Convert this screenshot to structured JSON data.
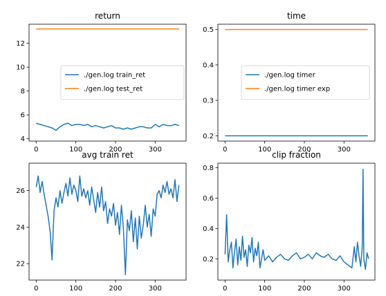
{
  "colors": {
    "blue": "#1f77b4",
    "orange": "#ff7f0e"
  },
  "chart_data": [
    {
      "type": "line",
      "title": "return",
      "xlim": [
        -18,
        378
      ],
      "ylim": [
        3.8,
        13.6
      ],
      "xticks": [
        0,
        100,
        200,
        300
      ],
      "yticks": [
        4,
        6,
        8,
        10,
        12
      ],
      "grid": false,
      "legend": "center-right",
      "series": [
        {
          "name": "./gen.log train_ret",
          "color": "#1f77b4",
          "x": [
            0,
            10,
            20,
            30,
            40,
            50,
            60,
            70,
            80,
            90,
            100,
            110,
            120,
            130,
            140,
            150,
            160,
            170,
            180,
            190,
            200,
            210,
            220,
            230,
            240,
            250,
            260,
            270,
            280,
            290,
            300,
            310,
            320,
            330,
            340,
            350,
            360
          ],
          "y": [
            5.3,
            5.2,
            5.1,
            5.0,
            4.9,
            4.7,
            5.0,
            5.2,
            5.3,
            5.1,
            5.2,
            5.2,
            5.1,
            5.2,
            5.0,
            5.1,
            5.0,
            4.9,
            5.0,
            5.1,
            4.9,
            4.9,
            4.8,
            4.9,
            4.8,
            4.9,
            5.0,
            5.0,
            4.9,
            4.9,
            5.2,
            5.0,
            5.2,
            5.1,
            5.1,
            5.2,
            5.1
          ]
        },
        {
          "name": "./gen.log test_ret",
          "color": "#ff7f0e",
          "x": [
            0,
            360
          ],
          "y": [
            13.2,
            13.2
          ]
        }
      ]
    },
    {
      "type": "line",
      "title": "time",
      "xlim": [
        -18,
        378
      ],
      "ylim": [
        0.185,
        0.515
      ],
      "xticks": [
        0,
        100,
        200,
        300
      ],
      "yticks": [
        0.2,
        0.3,
        0.4,
        0.5
      ],
      "grid": false,
      "legend": "center-right",
      "series": [
        {
          "name": "./gen.log timer",
          "color": "#1f77b4",
          "x": [
            0,
            360
          ],
          "y": [
            0.2,
            0.2
          ]
        },
        {
          "name": "./gen.log timer exp",
          "color": "#ff7f0e",
          "x": [
            0,
            360
          ],
          "y": [
            0.5,
            0.5
          ]
        }
      ]
    },
    {
      "type": "line",
      "title": "avg train ret",
      "xlim": [
        -18,
        378
      ],
      "ylim": [
        21.1,
        27.5
      ],
      "xticks": [
        0,
        100,
        200,
        300
      ],
      "yticks": [
        22,
        24,
        26
      ],
      "grid": false,
      "series": [
        {
          "color": "#1f77b4",
          "x": [
            0,
            5,
            10,
            15,
            20,
            25,
            30,
            35,
            40,
            45,
            50,
            55,
            60,
            65,
            70,
            75,
            80,
            85,
            90,
            95,
            100,
            105,
            110,
            115,
            120,
            125,
            130,
            135,
            140,
            145,
            150,
            155,
            160,
            165,
            170,
            175,
            180,
            185,
            190,
            195,
            200,
            205,
            210,
            215,
            220,
            225,
            230,
            235,
            240,
            245,
            250,
            255,
            260,
            265,
            270,
            275,
            280,
            285,
            290,
            295,
            300,
            305,
            310,
            315,
            320,
            325,
            330,
            335,
            340,
            345,
            350,
            355,
            360
          ],
          "y": [
            26.2,
            26.8,
            25.9,
            26.5,
            25.8,
            25.2,
            24.6,
            23.8,
            22.2,
            24.9,
            25.6,
            25.1,
            26.0,
            25.3,
            25.9,
            26.4,
            25.7,
            26.7,
            25.8,
            26.3,
            26.0,
            25.4,
            26.8,
            25.7,
            26.1,
            25.6,
            26.0,
            25.2,
            26.2,
            25.5,
            24.8,
            25.9,
            25.1,
            26.2,
            24.9,
            25.4,
            24.2,
            25.0,
            24.6,
            25.3,
            24.1,
            24.8,
            23.6,
            25.2,
            23.9,
            21.4,
            24.4,
            23.8,
            24.9,
            23.2,
            24.5,
            22.8,
            24.6,
            23.4,
            24.1,
            25.2,
            24.0,
            24.7,
            23.5,
            25.0,
            24.6,
            25.8,
            26.0,
            25.6,
            26.3,
            25.9,
            26.5,
            25.8,
            26.1,
            25.6,
            26.6,
            25.4,
            26.3
          ]
        }
      ]
    },
    {
      "type": "line",
      "title": "clip fraction",
      "xlim": [
        -18,
        378
      ],
      "ylim": [
        0.06,
        0.83
      ],
      "xticks": [
        0,
        100,
        200,
        300
      ],
      "yticks": [
        0.2,
        0.4,
        0.6,
        0.8
      ],
      "grid": false,
      "series": [
        {
          "color": "#1f77b4",
          "x": [
            0,
            4,
            8,
            12,
            16,
            20,
            24,
            28,
            32,
            36,
            40,
            44,
            48,
            52,
            56,
            60,
            64,
            68,
            72,
            76,
            80,
            84,
            88,
            92,
            96,
            100,
            110,
            120,
            130,
            140,
            150,
            160,
            170,
            180,
            190,
            200,
            210,
            220,
            230,
            240,
            250,
            260,
            270,
            280,
            290,
            300,
            310,
            320,
            326,
            330,
            334,
            338,
            342,
            346,
            348,
            350,
            354,
            358,
            362
          ],
          "y": [
            0.23,
            0.49,
            0.18,
            0.26,
            0.31,
            0.14,
            0.25,
            0.33,
            0.16,
            0.28,
            0.19,
            0.35,
            0.21,
            0.26,
            0.15,
            0.29,
            0.24,
            0.34,
            0.18,
            0.27,
            0.22,
            0.31,
            0.14,
            0.2,
            0.26,
            0.19,
            0.22,
            0.18,
            0.21,
            0.23,
            0.2,
            0.19,
            0.22,
            0.24,
            0.2,
            0.21,
            0.23,
            0.2,
            0.24,
            0.22,
            0.21,
            0.23,
            0.2,
            0.19,
            0.22,
            0.18,
            0.16,
            0.14,
            0.28,
            0.18,
            0.31,
            0.22,
            0.15,
            0.28,
            0.79,
            0.2,
            0.13,
            0.24,
            0.2
          ]
        }
      ]
    }
  ]
}
